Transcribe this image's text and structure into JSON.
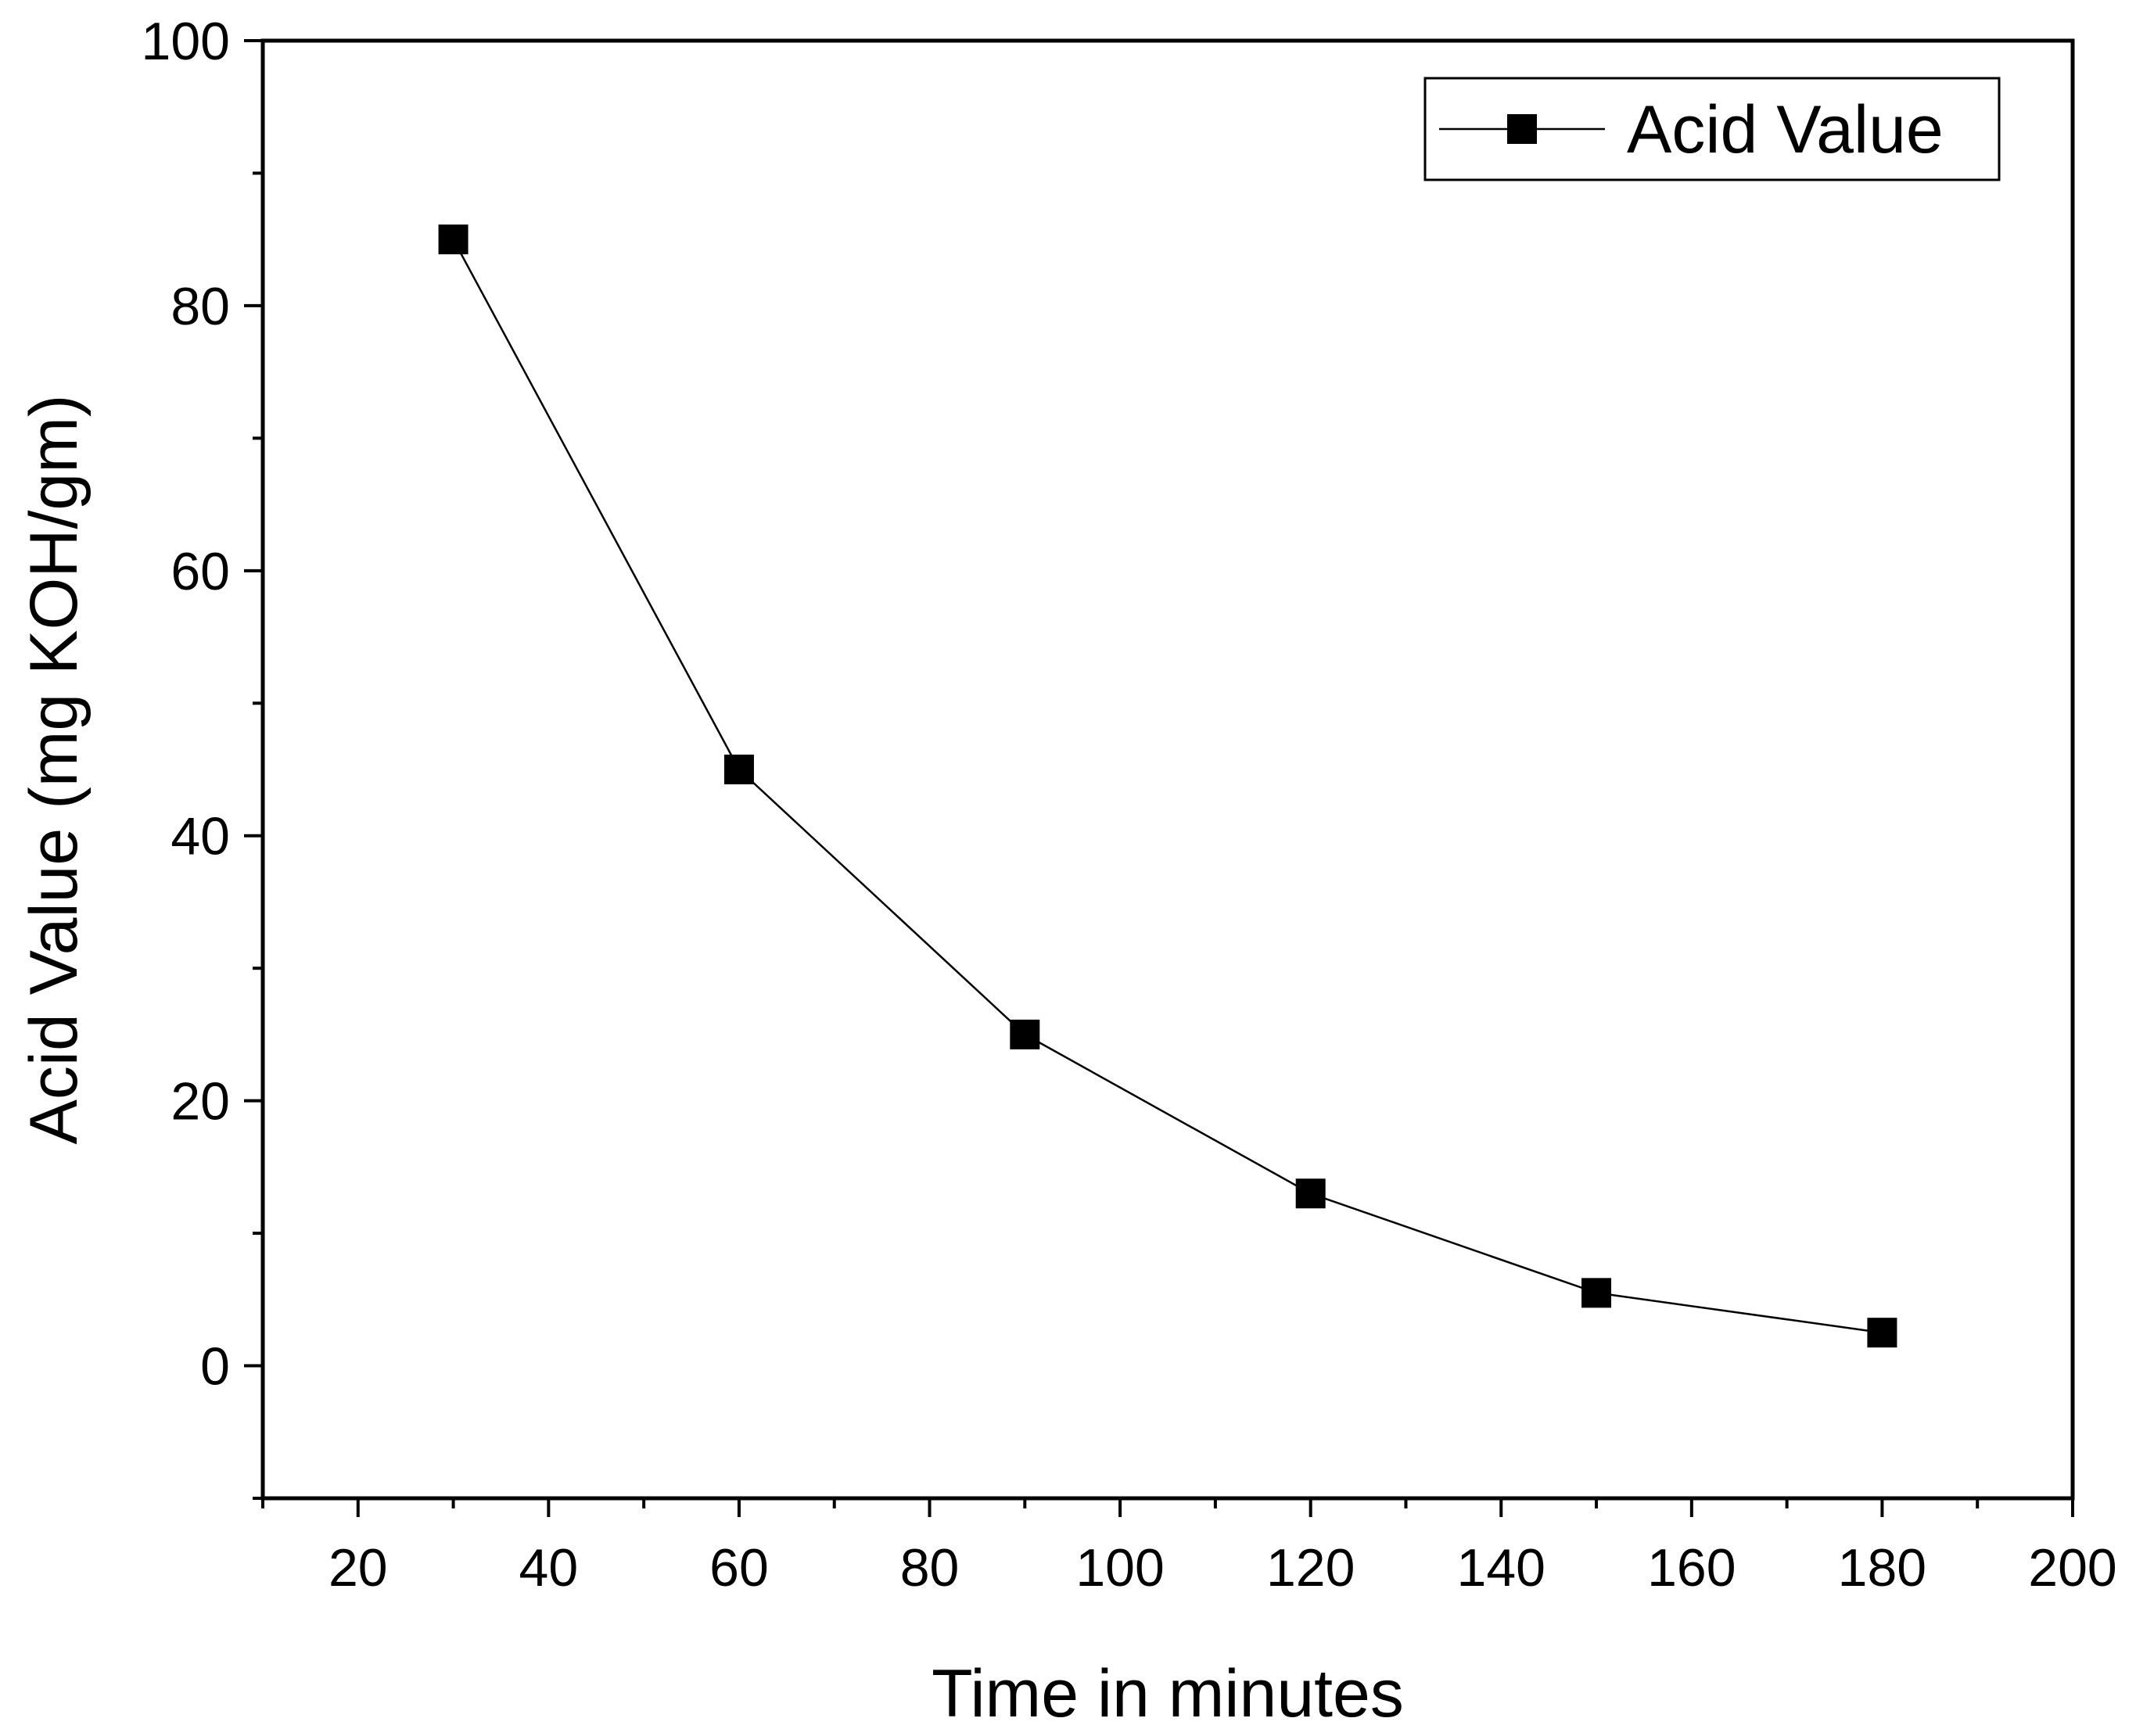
{
  "chart_data": {
    "type": "line",
    "title": "",
    "xlabel": "Time in minutes",
    "ylabel": "Acid Value (mg KOH/gm)",
    "xlim": [
      10,
      200
    ],
    "ylim": [
      -10,
      100
    ],
    "xticks": [
      20,
      40,
      60,
      80,
      100,
      120,
      140,
      160,
      180,
      200
    ],
    "xtick_labels": [
      "20",
      "40",
      "60",
      "80",
      "100",
      "120",
      "140",
      "160",
      "180",
      "200"
    ],
    "xminor_step": 10,
    "yticks": [
      0,
      20,
      40,
      60,
      80,
      100
    ],
    "ytick_labels": [
      "0",
      "20",
      "40",
      "60",
      "80",
      "100"
    ],
    "yminor_step": 10,
    "grid": false,
    "legend_position": "top-right",
    "series": [
      {
        "name": "Acid Value",
        "marker": "square",
        "color": "#000000",
        "x": [
          30,
          60,
          90,
          120,
          150,
          180
        ],
        "y": [
          85,
          45,
          25,
          13,
          5.5,
          2.5
        ]
      }
    ]
  }
}
